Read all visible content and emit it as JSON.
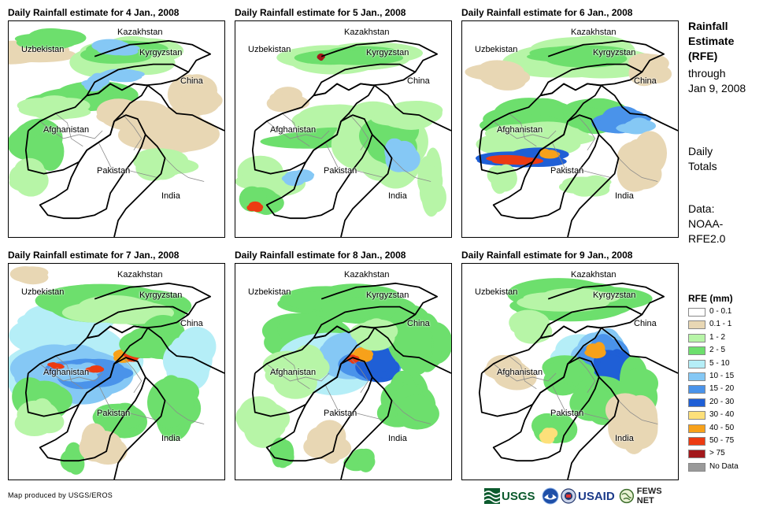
{
  "panels": [
    {
      "title": "Daily Rainfall estimate for 4 Jan., 2008",
      "pattern": "p4"
    },
    {
      "title": "Daily Rainfall estimate for 5 Jan., 2008",
      "pattern": "p5"
    },
    {
      "title": "Daily Rainfall estimate for 6 Jan., 2008",
      "pattern": "p6"
    },
    {
      "title": "Daily Rainfall estimate for 7 Jan., 2008",
      "pattern": "p7"
    },
    {
      "title": "Daily Rainfall estimate for 8 Jan., 2008",
      "pattern": "p8"
    },
    {
      "title": "Daily Rainfall estimate for 9 Jan., 2008",
      "pattern": "p9"
    }
  ],
  "map_labels": {
    "kazakhstan": "Kazakhstan",
    "uzbekistan": "Uzbekistan",
    "kyrgyzstan": "Kyrgyzstan",
    "china": "China",
    "afghanistan": "Afghanistan",
    "pakistan": "Pakistan",
    "india": "India"
  },
  "side": {
    "title_lines": [
      "Rainfall",
      "Estimate",
      "(RFE)"
    ],
    "subtitle_lines": [
      "through",
      "Jan 9, 2008"
    ],
    "daily_lines": [
      "Daily",
      "Totals"
    ],
    "data_lines": [
      "Data:",
      "NOAA-",
      "RFE2.0"
    ]
  },
  "legend": {
    "title": "RFE (mm)",
    "items": [
      {
        "label": "0 - 0.1",
        "color": "#ffffff"
      },
      {
        "label": "0.1 - 1",
        "color": "#e8d7b4"
      },
      {
        "label": "1 - 2",
        "color": "#b7f5a7"
      },
      {
        "label": "2 - 5",
        "color": "#6ddf6d"
      },
      {
        "label": "5 - 10",
        "color": "#b5eef7"
      },
      {
        "label": "10 - 15",
        "color": "#85c8f5"
      },
      {
        "label": "15 - 20",
        "color": "#4a93ea"
      },
      {
        "label": "20 - 30",
        "color": "#1f5fd6"
      },
      {
        "label": "30 - 40",
        "color": "#fde07a"
      },
      {
        "label": "40 - 50",
        "color": "#f7a11a"
      },
      {
        "label": "50 - 75",
        "color": "#ec3b12"
      },
      {
        "label": "> 75",
        "color": "#a3181b"
      },
      {
        "label": "No Data",
        "color": "#9a9a9a"
      }
    ]
  },
  "credit": "Map produced by USGS/EROS",
  "logos": {
    "usgs": "USGS",
    "usaid": "USAID",
    "fews": "FEWS NET",
    "noaa_icon": "noaa-logo-icon",
    "usgs_icon": "usgs-logo-icon",
    "fews_icon": "fews-globe-icon"
  }
}
